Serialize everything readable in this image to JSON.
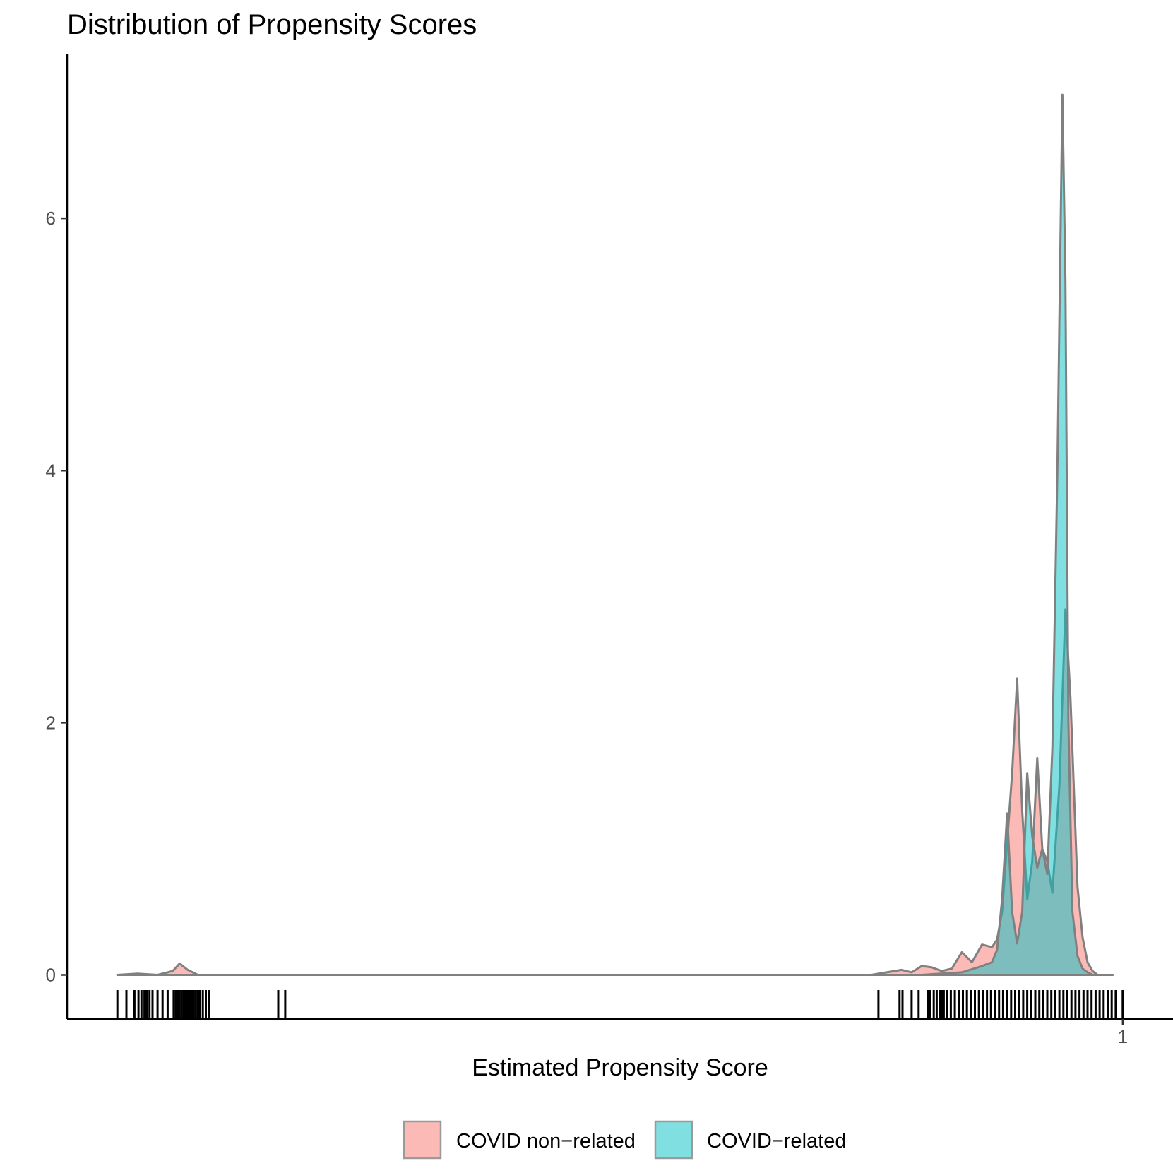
{
  "chart_data": {
    "type": "area",
    "title": "Distribution of Propensity Scores",
    "xlabel": "Estimated Propensity Score",
    "ylabel": "",
    "x_ticks": [
      1
    ],
    "x_tick_labels": [
      "1"
    ],
    "y_ticks": [
      0,
      2,
      4,
      6
    ],
    "y_tick_labels": [
      "0",
      "2",
      "4",
      "6"
    ],
    "xlim": [
      -0.05,
      1.05
    ],
    "ylim": [
      -0.35,
      7.3
    ],
    "grid": false,
    "legend_position": "bottom",
    "density_outline_color": "#808080",
    "series": [
      {
        "name": "COVID non−related",
        "color": "#F8766D",
        "x": [
          0.0,
          0.02,
          0.04,
          0.055,
          0.062,
          0.07,
          0.08,
          0.095,
          0.2,
          0.3,
          0.5,
          0.75,
          0.78,
          0.79,
          0.8,
          0.81,
          0.82,
          0.83,
          0.84,
          0.85,
          0.86,
          0.87,
          0.875,
          0.88,
          0.89,
          0.895,
          0.9,
          0.905,
          0.91,
          0.915,
          0.92,
          0.925,
          0.93,
          0.937,
          0.943,
          0.948,
          0.955,
          0.96,
          0.965,
          0.97,
          0.975,
          0.98,
          0.985,
          0.99
        ],
        "y": [
          0.0,
          0.01,
          0.0,
          0.03,
          0.09,
          0.04,
          0.0,
          0.0,
          0.0,
          0.0,
          0.0,
          0.0,
          0.04,
          0.02,
          0.07,
          0.06,
          0.03,
          0.05,
          0.18,
          0.1,
          0.24,
          0.22,
          0.28,
          0.5,
          1.6,
          2.35,
          1.3,
          0.6,
          0.9,
          1.72,
          1.0,
          0.9,
          0.65,
          1.5,
          2.9,
          2.2,
          0.7,
          0.3,
          0.1,
          0.03,
          0.0,
          0.0,
          0.0,
          0.0
        ]
      },
      {
        "name": "COVID−related",
        "color": "#00BFC4",
        "x": [
          0.0,
          0.1,
          0.3,
          0.5,
          0.8,
          0.84,
          0.86,
          0.87,
          0.875,
          0.88,
          0.885,
          0.89,
          0.895,
          0.9,
          0.905,
          0.91,
          0.915,
          0.92,
          0.925,
          0.93,
          0.935,
          0.94,
          0.943,
          0.946,
          0.95,
          0.955,
          0.96,
          0.965,
          0.97,
          0.975,
          0.98,
          0.99
        ],
        "y": [
          0.0,
          0.0,
          0.0,
          0.0,
          0.0,
          0.02,
          0.07,
          0.1,
          0.2,
          0.6,
          1.28,
          0.5,
          0.25,
          0.5,
          1.6,
          1.1,
          0.85,
          1.0,
          0.8,
          1.8,
          4.0,
          6.98,
          5.5,
          2.0,
          0.5,
          0.15,
          0.05,
          0.02,
          0.0,
          0.0,
          0.0,
          0.0
        ]
      }
    ],
    "rug_x": [
      0.0,
      0.009,
      0.017,
      0.021,
      0.024,
      0.027,
      0.029,
      0.032,
      0.035,
      0.04,
      0.045,
      0.05,
      0.056,
      0.058,
      0.06,
      0.062,
      0.064,
      0.066,
      0.068,
      0.07,
      0.072,
      0.074,
      0.076,
      0.078,
      0.08,
      0.082,
      0.085,
      0.088,
      0.091,
      0.16,
      0.167,
      0.757,
      0.778,
      0.781,
      0.79,
      0.797,
      0.806,
      0.808,
      0.812,
      0.815,
      0.818,
      0.82,
      0.822,
      0.825,
      0.829,
      0.833,
      0.837,
      0.841,
      0.845,
      0.849,
      0.853,
      0.857,
      0.861,
      0.865,
      0.869,
      0.873,
      0.877,
      0.881,
      0.885,
      0.889,
      0.893,
      0.897,
      0.901,
      0.905,
      0.909,
      0.913,
      0.917,
      0.921,
      0.925,
      0.929,
      0.933,
      0.937,
      0.941,
      0.945,
      0.949,
      0.953,
      0.957,
      0.961,
      0.965,
      0.969,
      0.973,
      0.977,
      0.981,
      0.985,
      0.989,
      0.993,
      1.0
    ]
  }
}
